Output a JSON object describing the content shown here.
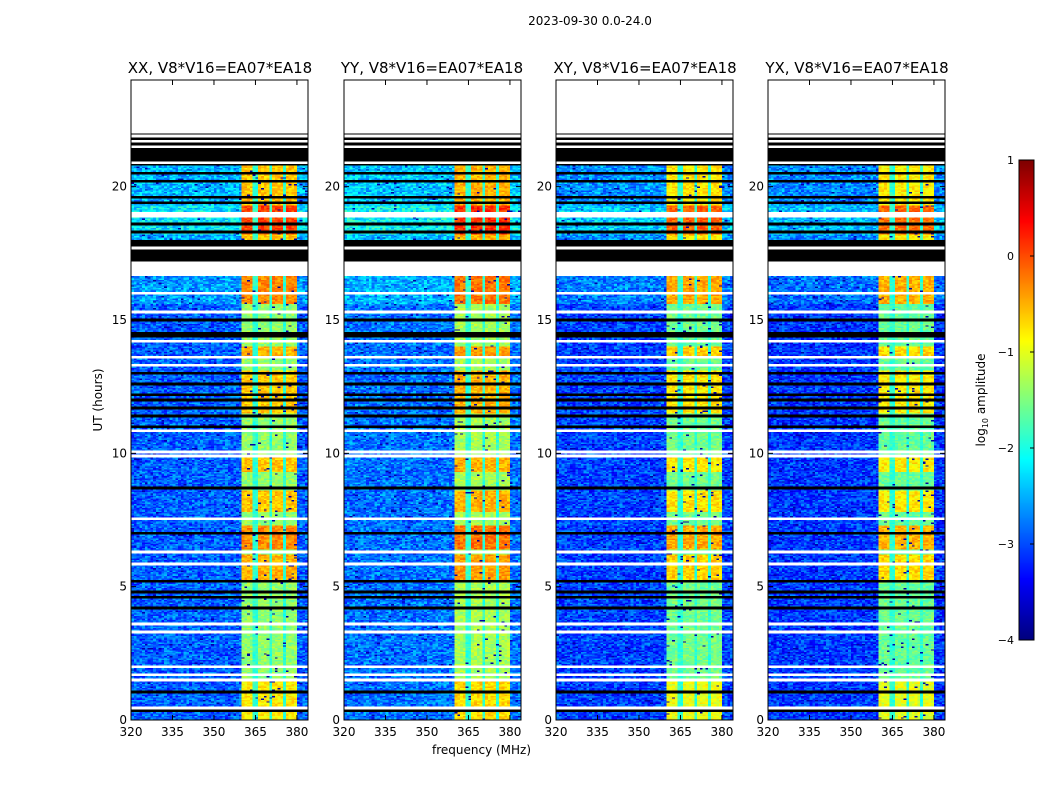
{
  "chart_data": {
    "type": "heatmap",
    "title": "2023-09-30 0.0-24.0",
    "xlabel": "frequency (MHz)",
    "ylabel": "UT (hours)",
    "xlim": [
      320,
      384
    ],
    "ylim": [
      0,
      24
    ],
    "xticks": [
      320,
      335,
      350,
      365,
      380
    ],
    "yticks": [
      0,
      5,
      10,
      15,
      20
    ],
    "colormap": "jet",
    "colorbar": {
      "label_prefix": "log",
      "label_sub": "10",
      "label_suffix": " amplitude",
      "range": [
        -4,
        1
      ],
      "ticks": [
        1,
        0,
        -1,
        -2,
        -3,
        -4
      ]
    },
    "panels": [
      {
        "title": "XX, V8*V16=EA07*EA18",
        "level_offset": 0.0
      },
      {
        "title": "YY, V8*V16=EA07*EA18",
        "level_offset": 0.1
      },
      {
        "title": "XY, V8*V16=EA07*EA18",
        "level_offset": -0.15
      },
      {
        "title": "YX, V8*V16=EA07*EA18",
        "level_offset": -0.2
      }
    ],
    "rfi_band_mhz": [
      360.5,
      380
    ],
    "rfi_channel_gaps_mhz": [
      365,
      370.2,
      375.2
    ],
    "segments": [
      {
        "t": [
          22.0,
          24.0
        ],
        "kind": "flagged"
      },
      {
        "t": [
          20.8,
          22.0
        ],
        "kind": "nodata"
      },
      {
        "t": [
          18.0,
          20.8
        ],
        "kind": "data",
        "base": -2.5,
        "rfi": -0.6
      },
      {
        "t": [
          18.2,
          19.3
        ],
        "kind": "data",
        "base": -2.2,
        "rfi": 0.05
      },
      {
        "t": [
          17.2,
          18.0
        ],
        "kind": "nodata"
      },
      {
        "t": [
          16.65,
          17.2
        ],
        "kind": "flagged"
      },
      {
        "t": [
          0.0,
          16.65
        ],
        "kind": "data",
        "base": -2.9,
        "rfi": -1.4
      },
      {
        "t": [
          15.6,
          16.65
        ],
        "kind": "data",
        "base": -2.6,
        "rfi": -0.3
      },
      {
        "t": [
          13.6,
          14.0
        ],
        "kind": "data",
        "base": -2.9,
        "rfi": -0.5
      },
      {
        "t": [
          11.5,
          13.1
        ],
        "kind": "data",
        "base": -2.9,
        "rfi": -0.6
      },
      {
        "t": [
          9.3,
          9.9
        ],
        "kind": "data",
        "base": -2.9,
        "rfi": -0.6
      },
      {
        "t": [
          7.8,
          8.6
        ],
        "kind": "data",
        "base": -2.9,
        "rfi": -0.6
      },
      {
        "t": [
          6.4,
          7.3
        ],
        "kind": "data",
        "base": -2.9,
        "rfi": -0.3
      },
      {
        "t": [
          5.2,
          6.2
        ],
        "kind": "data",
        "base": -2.9,
        "rfi": -0.5
      },
      {
        "t": [
          0.0,
          1.5
        ],
        "kind": "data",
        "base": -2.9,
        "rfi": -0.8
      }
    ],
    "flagged_lines_hours": [
      21.9,
      21.7,
      21.5,
      20.9,
      19.0,
      18.9,
      17.7,
      16.0,
      15.3,
      14.2,
      13.6,
      13.3,
      10.85,
      10.05,
      9.9,
      7.55,
      6.3,
      5.85,
      3.6,
      3.3,
      2.0,
      1.7,
      1.5,
      0.45
    ],
    "nodata_lines_hours": [
      20.5,
      20.2,
      19.6,
      19.4,
      18.6,
      18.3,
      15.0,
      14.5,
      14.4,
      13.0,
      12.6,
      12.2,
      12.0,
      11.7,
      11.4,
      11.0,
      8.7,
      7.0,
      5.2,
      4.8,
      4.6,
      4.2,
      1.05,
      0.35
    ]
  }
}
